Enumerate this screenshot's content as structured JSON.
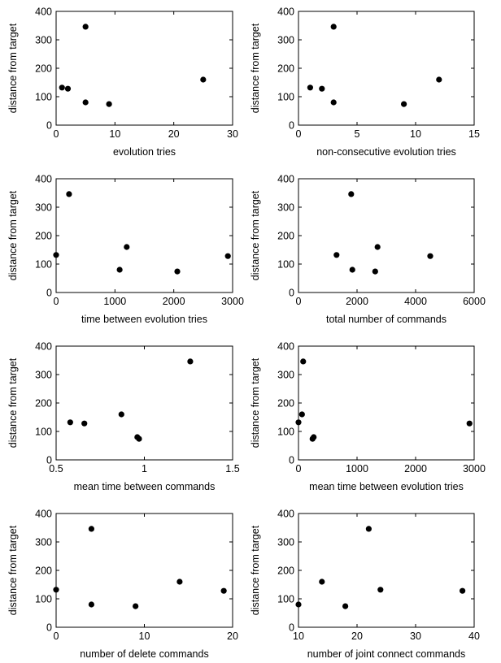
{
  "figure": {
    "layout": "4x2 grid of scatter plots"
  },
  "chart_data": [
    {
      "type": "scatter",
      "xlabel": "evolution tries",
      "ylabel": "distance from target",
      "xlim": [
        0,
        30
      ],
      "ylim": [
        0,
        400
      ],
      "xticks": [
        0,
        10,
        20,
        30
      ],
      "yticks": [
        0,
        100,
        200,
        300,
        400
      ],
      "grid": false,
      "marker_color": "#000000",
      "points": [
        [
          1,
          132
        ],
        [
          2,
          128
        ],
        [
          5,
          346
        ],
        [
          5,
          80
        ],
        [
          9,
          74
        ],
        [
          25,
          160
        ]
      ]
    },
    {
      "type": "scatter",
      "xlabel": "non-consecutive evolution tries",
      "ylabel": "distance from target",
      "xlim": [
        0,
        15
      ],
      "ylim": [
        0,
        400
      ],
      "xticks": [
        0,
        5,
        10,
        15
      ],
      "yticks": [
        0,
        100,
        200,
        300,
        400
      ],
      "grid": false,
      "marker_color": "#000000",
      "points": [
        [
          1,
          132
        ],
        [
          2,
          128
        ],
        [
          3,
          346
        ],
        [
          3,
          80
        ],
        [
          9,
          74
        ],
        [
          12,
          160
        ]
      ]
    },
    {
      "type": "scatter",
      "xlabel": "time between evolution tries",
      "ylabel": "distance from target",
      "xlim": [
        0,
        3000
      ],
      "ylim": [
        0,
        400
      ],
      "xticks": [
        0,
        1000,
        2000,
        3000
      ],
      "yticks": [
        0,
        100,
        200,
        300,
        400
      ],
      "grid": false,
      "marker_color": "#000000",
      "points": [
        [
          0,
          132
        ],
        [
          220,
          346
        ],
        [
          1080,
          80
        ],
        [
          1200,
          160
        ],
        [
          2060,
          74
        ],
        [
          2920,
          128
        ]
      ]
    },
    {
      "type": "scatter",
      "xlabel": "total number of commands",
      "ylabel": "distance from target",
      "xlim": [
        0,
        6000
      ],
      "ylim": [
        0,
        400
      ],
      "xticks": [
        0,
        2000,
        4000,
        6000
      ],
      "yticks": [
        0,
        100,
        200,
        300,
        400
      ],
      "grid": false,
      "marker_color": "#000000",
      "points": [
        [
          1300,
          132
        ],
        [
          1800,
          346
        ],
        [
          1840,
          80
        ],
        [
          2620,
          74
        ],
        [
          2700,
          160
        ],
        [
          4500,
          128
        ]
      ]
    },
    {
      "type": "scatter",
      "xlabel": "mean time between commands",
      "ylabel": "distance from target",
      "xlim": [
        0.5,
        1.5
      ],
      "ylim": [
        0,
        400
      ],
      "xticks": [
        0.5,
        1,
        1.5
      ],
      "yticks": [
        0,
        100,
        200,
        300,
        400
      ],
      "grid": false,
      "marker_color": "#000000",
      "points": [
        [
          0.58,
          132
        ],
        [
          0.66,
          128
        ],
        [
          0.87,
          160
        ],
        [
          0.96,
          80
        ],
        [
          0.97,
          74
        ],
        [
          1.26,
          346
        ]
      ]
    },
    {
      "type": "scatter",
      "xlabel": "mean time between evolution tries",
      "ylabel": "distance from target",
      "xlim": [
        0,
        3000
      ],
      "ylim": [
        0,
        400
      ],
      "xticks": [
        0,
        1000,
        2000,
        3000
      ],
      "yticks": [
        0,
        100,
        200,
        300,
        400
      ],
      "grid": false,
      "marker_color": "#000000",
      "points": [
        [
          0,
          132
        ],
        [
          60,
          160
        ],
        [
          80,
          346
        ],
        [
          240,
          74
        ],
        [
          260,
          80
        ],
        [
          2920,
          128
        ]
      ]
    },
    {
      "type": "scatter",
      "xlabel": "number of delete commands",
      "ylabel": "distance from target",
      "xlim": [
        0,
        20
      ],
      "ylim": [
        0,
        400
      ],
      "xticks": [
        0,
        10,
        20
      ],
      "yticks": [
        0,
        100,
        200,
        300,
        400
      ],
      "grid": false,
      "marker_color": "#000000",
      "points": [
        [
          0,
          132
        ],
        [
          4,
          346
        ],
        [
          4,
          80
        ],
        [
          9,
          74
        ],
        [
          14,
          160
        ],
        [
          19,
          128
        ]
      ]
    },
    {
      "type": "scatter",
      "xlabel": "number of joint connect commands",
      "ylabel": "distance from target",
      "xlim": [
        10,
        40
      ],
      "ylim": [
        0,
        400
      ],
      "xticks": [
        10,
        20,
        30,
        40
      ],
      "yticks": [
        0,
        100,
        200,
        300,
        400
      ],
      "grid": false,
      "marker_color": "#000000",
      "points": [
        [
          10,
          80
        ],
        [
          14,
          160
        ],
        [
          18,
          74
        ],
        [
          22,
          346
        ],
        [
          24,
          132
        ],
        [
          38,
          128
        ]
      ]
    }
  ]
}
